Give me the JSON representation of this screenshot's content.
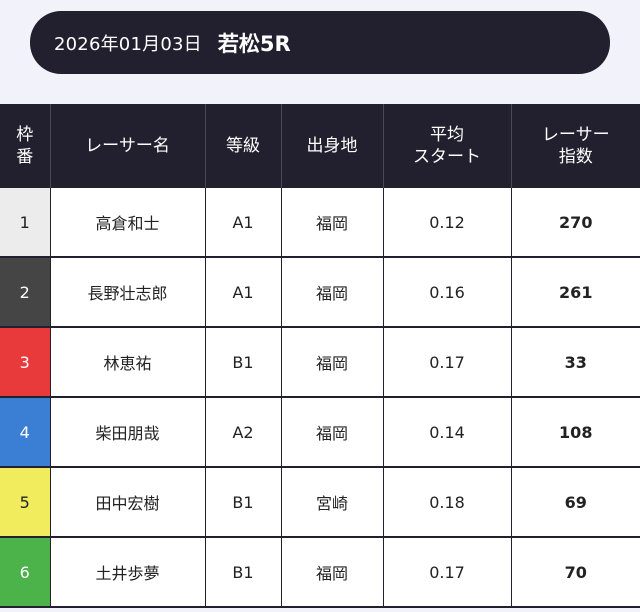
{
  "header": {
    "date": "2026年01月03日",
    "race": "若松5R"
  },
  "table": {
    "columns": {
      "frame": [
        "枠",
        "番"
      ],
      "name": "レーサー名",
      "grade": "等級",
      "hometown": "出身地",
      "avg_start": [
        "平均",
        "スタート"
      ],
      "racer_index": [
        "レーサー",
        "指数"
      ]
    },
    "rows": [
      {
        "frame": "1",
        "frame_color": "#ececec",
        "frame_text_color": "#222222",
        "name": "高倉和士",
        "grade": "A1",
        "hometown": "福岡",
        "avg_start": "0.12",
        "racer_index": "270"
      },
      {
        "frame": "2",
        "frame_color": "#454545",
        "frame_text_color": "#ffffff",
        "name": "長野壮志郎",
        "grade": "A1",
        "hometown": "福岡",
        "avg_start": "0.16",
        "racer_index": "261"
      },
      {
        "frame": "3",
        "frame_color": "#e83a3a",
        "frame_text_color": "#ffffff",
        "name": "林恵祐",
        "grade": "B1",
        "hometown": "福岡",
        "avg_start": "0.17",
        "racer_index": "33"
      },
      {
        "frame": "4",
        "frame_color": "#3a7fd4",
        "frame_text_color": "#ffffff",
        "name": "柴田朋哉",
        "grade": "A2",
        "hometown": "福岡",
        "avg_start": "0.14",
        "racer_index": "108"
      },
      {
        "frame": "5",
        "frame_color": "#f0ec5e",
        "frame_text_color": "#222222",
        "name": "田中宏樹",
        "grade": "B1",
        "hometown": "宮崎",
        "avg_start": "0.18",
        "racer_index": "69"
      },
      {
        "frame": "6",
        "frame_color": "#4cb24a",
        "frame_text_color": "#ffffff",
        "name": "土井歩夢",
        "grade": "B1",
        "hometown": "福岡",
        "avg_start": "0.17",
        "racer_index": "70"
      }
    ]
  }
}
